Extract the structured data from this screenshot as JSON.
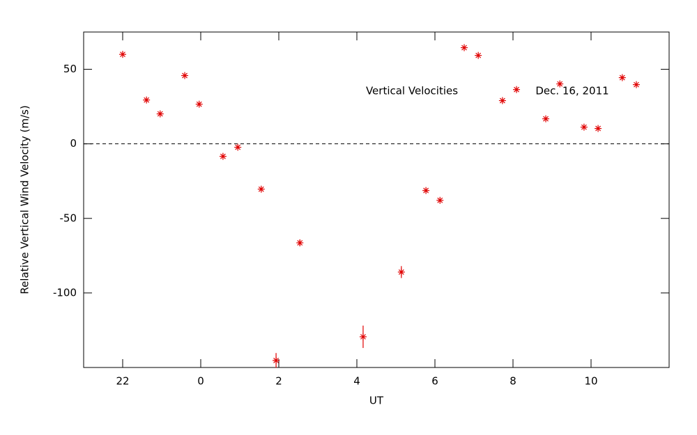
{
  "chart_data": {
    "type": "scatter",
    "xlabel": "UT",
    "ylabel": "Relative Vertical Wind Velocity (m/s)",
    "annotations": [
      "Vertical Velocities",
      "Dec. 16, 2011"
    ],
    "color": "#e00000",
    "reference_line": 0,
    "xlim": [
      21,
      36
    ],
    "xticks": [
      22,
      {
        "value": 24,
        "label": "0"
      },
      {
        "value": 26,
        "label": "2"
      },
      {
        "value": 28,
        "label": "4"
      },
      {
        "value": 30,
        "label": "6"
      },
      {
        "value": 32,
        "label": "8"
      },
      {
        "value": 34,
        "label": "10"
      }
    ],
    "ylim": [
      -150,
      75
    ],
    "yticks": [
      50,
      0,
      -50,
      -100
    ],
    "x": [
      22,
      22.61,
      22.96,
      23.59,
      23.96,
      24.57,
      24.95,
      25.55,
      25.93,
      26.54,
      28.16,
      29.14,
      29.77,
      30.13,
      30.75,
      31.11,
      31.73,
      32.09,
      32.84,
      33.2,
      33.82,
      34.18,
      34.8,
      35.16
    ],
    "values": [
      60,
      29.4,
      20.1,
      45.8,
      26.6,
      -8.4,
      -2.3,
      -30.4,
      -145.3,
      -66.4,
      -129.4,
      -86,
      -31.3,
      -37.9,
      64.5,
      59.3,
      29,
      36.4,
      16.8,
      40.2,
      11.2,
      10.3,
      44.4,
      39.7
    ],
    "errors": [
      1,
      1,
      1,
      1,
      1,
      1,
      1,
      1,
      5,
      2,
      7.5,
      4,
      1,
      1,
      1,
      1,
      1,
      1,
      1,
      1,
      1,
      1,
      1,
      1
    ]
  }
}
